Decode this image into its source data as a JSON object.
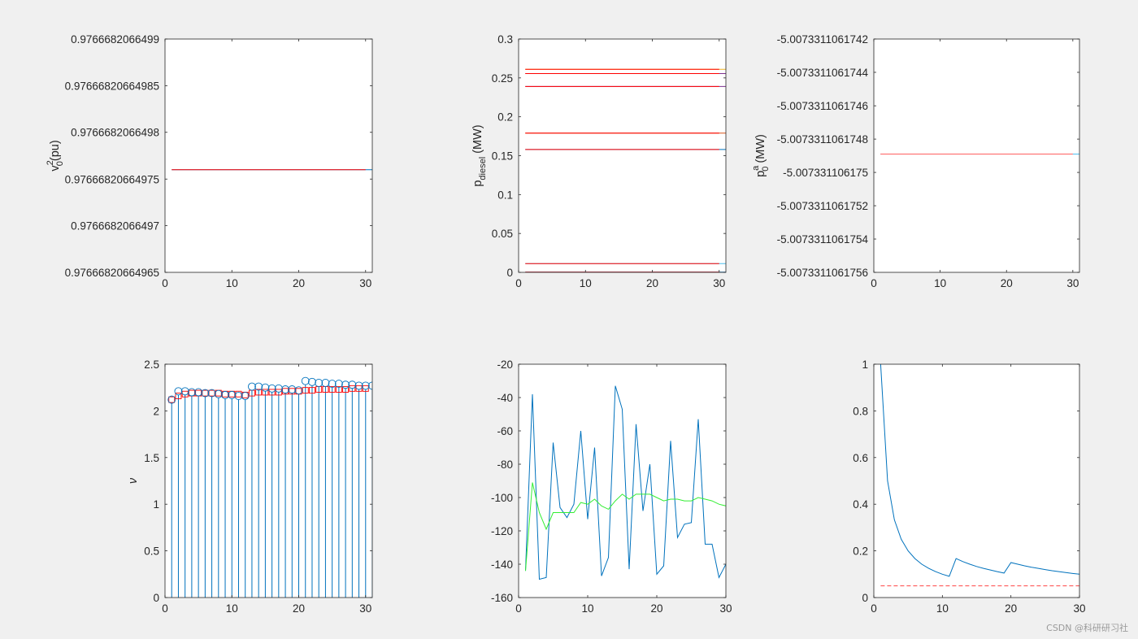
{
  "watermark": "CSDN @科研研习社",
  "chart_data": [
    {
      "type": "line",
      "xlim": [
        0,
        31
      ],
      "xticks": [
        "0",
        "10",
        "20",
        "30"
      ],
      "ytick_labels": [
        "0.97666820664965",
        "0.9766682066497",
        "0.97666820664975",
        "0.9766682066498",
        "0.97666820664985",
        "0.9766682066499"
      ],
      "ylabel": {
        "base": "v",
        "sub": "0",
        "sup": "2",
        "rest": "(pu)"
      },
      "hlines": [
        {
          "value": 0.97666820664976,
          "color": "#0072BD",
          "x": [
            1,
            31
          ]
        },
        {
          "value": 0.97666820664976,
          "color": "#FF0000",
          "x": [
            1,
            30
          ]
        }
      ]
    },
    {
      "type": "line",
      "xlim": [
        0,
        31
      ],
      "xticks": [
        "0",
        "10",
        "20",
        "30"
      ],
      "ytick_labels": [
        "0",
        "0.05",
        "0.1",
        "0.15",
        "0.2",
        "0.25",
        "0.3"
      ],
      "ylabel": {
        "base": "p",
        "sub": "diesel",
        "sup": "",
        "rest": " (MW)"
      },
      "hlines": [
        {
          "value": 0.261,
          "color": "#EDB120",
          "x": [
            1,
            31
          ]
        },
        {
          "value": 0.2556,
          "color": "#7E2F8E",
          "x": [
            1,
            31
          ]
        },
        {
          "value": 0.239,
          "color": "#7E2F8E",
          "x": [
            1,
            31
          ]
        },
        {
          "value": 0.179,
          "color": "#D95319",
          "x": [
            1,
            31
          ]
        },
        {
          "value": 0.158,
          "color": "#0072BD",
          "x": [
            1,
            31
          ]
        },
        {
          "value": 0.0112,
          "color": "#4DBEEE",
          "x": [
            1,
            31
          ]
        },
        {
          "value": 0.0003,
          "color": "#0072BD",
          "x": [
            1,
            31
          ]
        },
        {
          "value": 0.261,
          "color": "#FF0000",
          "x": [
            1,
            30
          ]
        },
        {
          "value": 0.2556,
          "color": "#FF0000",
          "x": [
            1,
            30
          ]
        },
        {
          "value": 0.239,
          "color": "#FF0000",
          "x": [
            1,
            30
          ]
        },
        {
          "value": 0.179,
          "color": "#FF0000",
          "x": [
            1,
            30
          ]
        },
        {
          "value": 0.158,
          "color": "#FF0000",
          "x": [
            1,
            30
          ]
        },
        {
          "value": 0.0112,
          "color": "#FF0000",
          "x": [
            1,
            30
          ]
        },
        {
          "value": 0.0003,
          "color": "#FF0000",
          "x": [
            1,
            30
          ]
        }
      ]
    },
    {
      "type": "line",
      "xlim": [
        0,
        31
      ],
      "xticks": [
        "0",
        "10",
        "20",
        "30"
      ],
      "ytick_labels": [
        "-5.0073311061756",
        "-5.0073311061754",
        "-5.0073311061752",
        "-5.007331106175",
        "-5.0073311061748",
        "-5.0073311061746",
        "-5.0073311061744",
        "-5.0073311061742"
      ],
      "ylabel": {
        "base": "p",
        "sub": "0",
        "sup": "a",
        "rest": " (MW)"
      },
      "hlines": [
        {
          "value": -5.00733110617489,
          "color": "#4DBEEE",
          "x": [
            1,
            31
          ]
        },
        {
          "value": -5.00733110617489,
          "color": "#FF6060",
          "x": [
            1,
            30
          ]
        }
      ]
    },
    {
      "type": "stem",
      "xlim": [
        0,
        31
      ],
      "xticks": [
        "0",
        "10",
        "20",
        "30"
      ],
      "ytick_labels": [
        "0",
        "0.5",
        "1",
        "1.5",
        "2",
        "2.5"
      ],
      "ylabel": {
        "base": "ν",
        "sub": "",
        "sup": "",
        "rest": ""
      },
      "stem_series": {
        "color": "#0072BD",
        "marker": "circle",
        "x": [
          1,
          2,
          3,
          4,
          5,
          6,
          7,
          8,
          9,
          10,
          11,
          12,
          13,
          14,
          15,
          16,
          17,
          18,
          19,
          20,
          21,
          22,
          23,
          24,
          25,
          26,
          27,
          28,
          29,
          30,
          31
        ],
        "y": [
          2.12,
          2.21,
          2.21,
          2.2,
          2.2,
          2.19,
          2.19,
          2.18,
          2.17,
          2.17,
          2.16,
          2.16,
          2.26,
          2.26,
          2.25,
          2.24,
          2.24,
          2.23,
          2.23,
          2.22,
          2.32,
          2.31,
          2.3,
          2.3,
          2.29,
          2.29,
          2.28,
          2.28,
          2.27,
          2.27,
          2.27
        ]
      },
      "marker_series": {
        "color": "#FF0000",
        "marker": "square",
        "x": [
          1,
          2,
          3,
          4,
          5,
          6,
          7,
          8,
          9,
          10,
          11,
          12,
          13,
          14,
          15,
          16,
          17,
          18,
          19,
          20,
          21,
          22,
          23,
          24,
          25,
          26,
          27,
          28,
          29,
          30
        ],
        "y": [
          2.12,
          2.16,
          2.18,
          2.19,
          2.19,
          2.19,
          2.19,
          2.19,
          2.18,
          2.18,
          2.18,
          2.17,
          2.19,
          2.2,
          2.2,
          2.2,
          2.2,
          2.21,
          2.21,
          2.21,
          2.22,
          2.22,
          2.23,
          2.23,
          2.23,
          2.23,
          2.23,
          2.24,
          2.24,
          2.24
        ]
      }
    },
    {
      "type": "line",
      "xlim": [
        0,
        30
      ],
      "xticks": [
        "0",
        "10",
        "20",
        "30"
      ],
      "ytick_labels": [
        "-160",
        "-140",
        "-120",
        "-100",
        "-80",
        "-60",
        "-40",
        "-20"
      ],
      "series": [
        {
          "color": "#0072BD",
          "x": [
            1,
            2,
            3,
            4,
            5,
            6,
            7,
            8,
            9,
            10,
            11,
            12,
            13,
            14,
            15,
            16,
            17,
            18,
            19,
            20,
            21,
            22,
            23,
            24,
            25,
            26,
            27,
            28,
            29,
            30
          ],
          "y": [
            -144,
            -38,
            -149,
            -148,
            -67,
            -106,
            -112,
            -104,
            -60,
            -113,
            -70,
            -147,
            -136,
            -33,
            -47,
            -143,
            -56,
            -108,
            -80,
            -146,
            -141,
            -66,
            -124,
            -116,
            -115,
            -53,
            -128,
            -128,
            -148,
            -140
          ]
        },
        {
          "color": "#33EE33",
          "x": [
            1,
            2,
            3,
            4,
            5,
            6,
            7,
            8,
            9,
            10,
            11,
            12,
            13,
            14,
            15,
            16,
            17,
            18,
            19,
            20,
            21,
            22,
            23,
            24,
            25,
            26,
            27,
            28,
            29,
            30
          ],
          "y": [
            -144,
            -91,
            -109,
            -119,
            -109,
            -109,
            -109,
            -109,
            -103,
            -104,
            -101,
            -105,
            -107,
            -102,
            -98,
            -101,
            -98,
            -98,
            -98,
            -100,
            -102,
            -101,
            -101,
            -102,
            -102,
            -100,
            -101,
            -102,
            -104,
            -105
          ]
        }
      ]
    },
    {
      "type": "line",
      "xlim": [
        0,
        30
      ],
      "xticks": [
        "0",
        "10",
        "20",
        "30"
      ],
      "ytick_labels": [
        "0",
        "0.2",
        "0.4",
        "0.6",
        "0.8",
        "1"
      ],
      "series": [
        {
          "color": "#0072BD",
          "x": [
            1,
            2,
            3,
            4,
            5,
            6,
            7,
            8,
            9,
            10,
            11,
            12,
            13,
            14,
            15,
            16,
            17,
            18,
            19,
            20,
            21,
            22,
            23,
            24,
            25,
            26,
            27,
            28,
            29,
            30
          ],
          "y": [
            1.0,
            0.5,
            0.333,
            0.25,
            0.2,
            0.167,
            0.143,
            0.125,
            0.111,
            0.1,
            0.091,
            0.167,
            0.154,
            0.143,
            0.133,
            0.125,
            0.118,
            0.111,
            0.105,
            0.15,
            0.143,
            0.136,
            0.13,
            0.125,
            0.12,
            0.115,
            0.111,
            0.107,
            0.103,
            0.1
          ]
        },
        {
          "color": "#FF4444",
          "dashed": true,
          "x": [
            1,
            30
          ],
          "y": [
            0.05,
            0.05
          ]
        }
      ]
    }
  ]
}
